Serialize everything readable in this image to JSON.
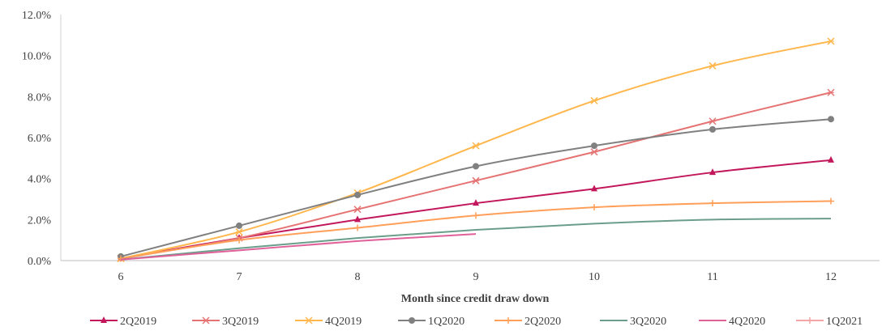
{
  "chart_data": {
    "type": "line",
    "title": "",
    "xlabel": "Month since credit draw down",
    "ylabel": "",
    "x": [
      6,
      7,
      8,
      9,
      10,
      11,
      12
    ],
    "ylim": [
      0,
      12
    ],
    "yticks": [
      "0.0%",
      "2.0%",
      "4.0%",
      "6.0%",
      "8.0%",
      "10.0%",
      "12.0%"
    ],
    "xticks": [
      "6",
      "7",
      "8",
      "9",
      "10",
      "11",
      "12"
    ],
    "grid": false,
    "legend_position": "bottom",
    "series": [
      {
        "name": "2Q2019",
        "color": "#C2185B",
        "marker": "triangle",
        "values": [
          0.1,
          1.1,
          2.0,
          2.8,
          3.5,
          4.3,
          4.9
        ]
      },
      {
        "name": "3Q2019",
        "color": "#E57373",
        "marker": "x",
        "values": [
          0.1,
          1.1,
          2.5,
          3.9,
          5.3,
          6.8,
          8.2
        ]
      },
      {
        "name": "4Q2019",
        "color": "#FFB74D",
        "marker": "x",
        "values": [
          0.1,
          1.4,
          3.3,
          5.6,
          7.8,
          9.5,
          10.7
        ]
      },
      {
        "name": "1Q2020",
        "color": "#808080",
        "marker": "circle",
        "values": [
          0.2,
          1.7,
          3.2,
          4.6,
          5.6,
          6.4,
          6.9
        ]
      },
      {
        "name": "2Q2020",
        "color": "#FF9F59",
        "marker": "plus",
        "values": [
          0.1,
          1.0,
          1.6,
          2.2,
          2.6,
          2.8,
          2.9
        ]
      },
      {
        "name": "3Q2020",
        "color": "#6B9E8A",
        "marker": "none",
        "values": [
          0.05,
          0.6,
          1.1,
          1.5,
          1.8,
          2.0,
          2.05
        ]
      },
      {
        "name": "4Q2020",
        "color": "#E0609A",
        "marker": "none",
        "values": [
          0.05,
          0.5,
          0.95,
          1.3,
          null,
          null,
          null
        ]
      },
      {
        "name": "1Q2021",
        "color": "#F4A6A6",
        "marker": "plus",
        "values": [
          null,
          null,
          null,
          null,
          null,
          null,
          null
        ]
      }
    ]
  }
}
